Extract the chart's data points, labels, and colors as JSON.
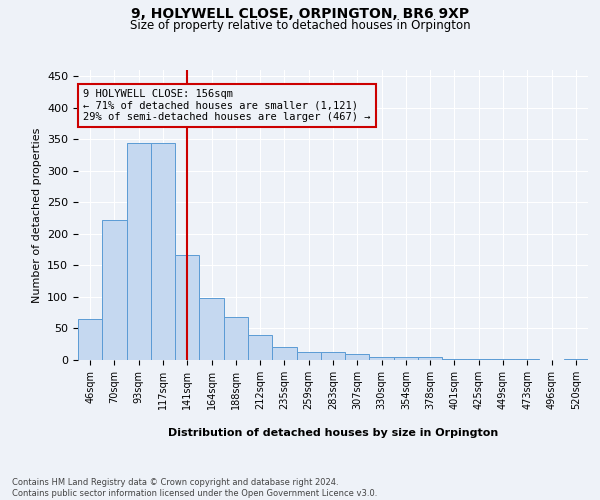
{
  "title": "9, HOLYWELL CLOSE, ORPINGTON, BR6 9XP",
  "subtitle": "Size of property relative to detached houses in Orpington",
  "xlabel": "Distribution of detached houses by size in Orpington",
  "ylabel": "Number of detached properties",
  "categories": [
    "46sqm",
    "70sqm",
    "93sqm",
    "117sqm",
    "141sqm",
    "164sqm",
    "188sqm",
    "212sqm",
    "235sqm",
    "259sqm",
    "283sqm",
    "307sqm",
    "330sqm",
    "354sqm",
    "378sqm",
    "401sqm",
    "425sqm",
    "449sqm",
    "473sqm",
    "496sqm",
    "520sqm"
  ],
  "values": [
    65,
    222,
    345,
    345,
    167,
    98,
    68,
    40,
    20,
    13,
    12,
    10,
    5,
    5,
    5,
    2,
    2,
    2,
    1,
    0,
    1
  ],
  "bar_color": "#c5d8f0",
  "bar_edge_color": "#5b9bd5",
  "vline_color": "#cc0000",
  "vline_pos": 4.5,
  "annotation_text": "9 HOLYWELL CLOSE: 156sqm\n← 71% of detached houses are smaller (1,121)\n29% of semi-detached houses are larger (467) →",
  "annotation_box_color": "#cc0000",
  "footer": "Contains HM Land Registry data © Crown copyright and database right 2024.\nContains public sector information licensed under the Open Government Licence v3.0.",
  "ylim": [
    0,
    460
  ],
  "yticks": [
    0,
    50,
    100,
    150,
    200,
    250,
    300,
    350,
    400,
    450
  ],
  "background_color": "#eef2f8",
  "grid_color": "#ffffff"
}
